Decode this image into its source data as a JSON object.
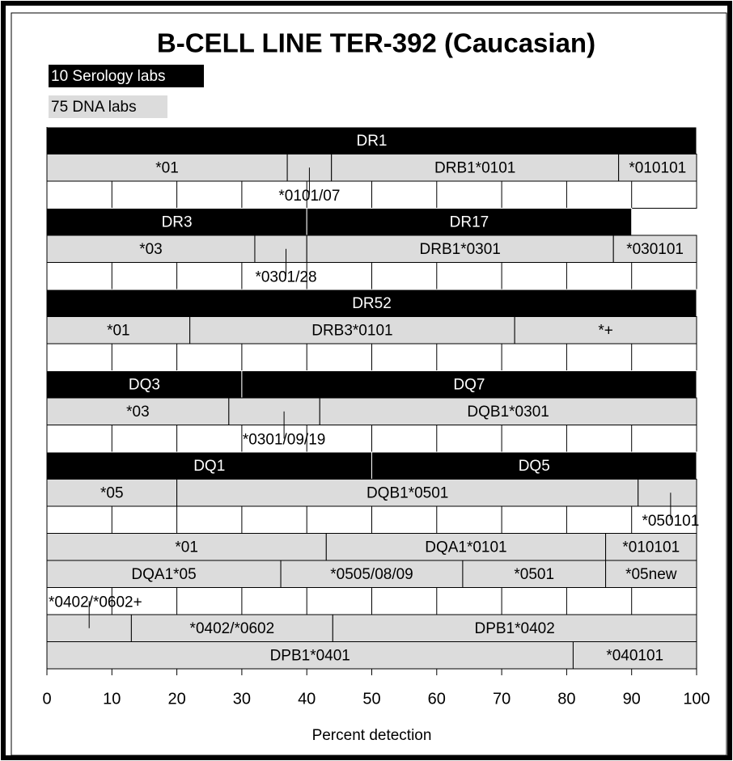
{
  "chart_data": {
    "type": "segmented",
    "title": "B-CELL LINE TER-392 (Caucasian)",
    "legend": [
      {
        "label": "10 Serology labs",
        "color": "#000000"
      },
      {
        "label": "75 DNA labs",
        "color": "#dcdcdc"
      }
    ],
    "xlabel": "Percent detection",
    "xlim": [
      0,
      100
    ],
    "xticks": [
      0,
      10,
      20,
      30,
      40,
      50,
      60,
      70,
      80,
      90,
      100
    ],
    "rows": [
      {
        "kind": "serology",
        "segments": [
          {
            "label": "DR1",
            "value": 100
          }
        ]
      },
      {
        "kind": "dna",
        "segments": [
          {
            "label": "*01",
            "value": 37
          },
          {
            "label": null,
            "value": 6.8
          },
          {
            "label": "DRB1*0101",
            "value": 44.2
          },
          {
            "label": "*010101",
            "value": 12
          }
        ]
      },
      {
        "kind": "grid",
        "markers": [
          {
            "label": "*0101/07",
            "value": 40.4,
            "link": "above"
          }
        ]
      },
      {
        "kind": "serology",
        "segments": [
          {
            "label": "DR3",
            "value": 40
          },
          {
            "label": "DR17",
            "value": 50
          }
        ]
      },
      {
        "kind": "dna",
        "segments": [
          {
            "label": "*03",
            "value": 32
          },
          {
            "label": null,
            "value": 8
          },
          {
            "label": "DRB1*0301",
            "value": 47.2
          },
          {
            "label": "*030101",
            "value": 12.8
          }
        ]
      },
      {
        "kind": "grid",
        "markers": [
          {
            "label": "*0301/28",
            "value": 36.8,
            "link": "above"
          }
        ]
      },
      {
        "kind": "serology",
        "segments": [
          {
            "label": "DR52",
            "value": 100
          }
        ]
      },
      {
        "kind": "dna",
        "segments": [
          {
            "label": "*01",
            "value": 22
          },
          {
            "label": "DRB3*0101",
            "value": 50
          },
          {
            "label": "*+",
            "value": 28
          }
        ]
      },
      {
        "kind": "grid",
        "markers": []
      },
      {
        "kind": "serology",
        "segments": [
          {
            "label": "DQ3",
            "value": 30
          },
          {
            "label": "DQ7",
            "value": 70
          }
        ]
      },
      {
        "kind": "dna",
        "segments": [
          {
            "label": "*03",
            "value": 28
          },
          {
            "label": null,
            "value": 14
          },
          {
            "label": "DQB1*0301",
            "value": 58
          }
        ]
      },
      {
        "kind": "grid",
        "markers": [
          {
            "label": "*0301/09/19",
            "value": 36.5,
            "link": "above"
          }
        ]
      },
      {
        "kind": "serology",
        "segments": [
          {
            "label": "DQ1",
            "value": 50
          },
          {
            "label": "DQ5",
            "value": 50
          }
        ]
      },
      {
        "kind": "dna",
        "segments": [
          {
            "label": "*05",
            "value": 20
          },
          {
            "label": "DQB1*0501",
            "value": 71
          },
          {
            "label": null,
            "value": 9
          }
        ]
      },
      {
        "kind": "grid",
        "markers": [
          {
            "label": "*050101",
            "value": 96,
            "link": "above"
          }
        ]
      },
      {
        "kind": "dna",
        "segments": [
          {
            "label": "*01",
            "value": 43
          },
          {
            "label": "DQA1*0101",
            "value": 43
          },
          {
            "label": "*010101",
            "value": 14
          }
        ]
      },
      {
        "kind": "dna",
        "segments": [
          {
            "label": "DQA1*05",
            "value": 36
          },
          {
            "label": "*0505/08/09",
            "value": 28
          },
          {
            "label": "*0501",
            "value": 22
          },
          {
            "label": "*05new",
            "value": 14
          }
        ]
      },
      {
        "kind": "grid",
        "markers": [
          {
            "label": "*0402/*0602+",
            "value": 6.5,
            "link": "below"
          }
        ]
      },
      {
        "kind": "dna",
        "segments": [
          {
            "label": null,
            "value": 13
          },
          {
            "label": "*0402/*0602",
            "value": 31
          },
          {
            "label": "DPB1*0402",
            "value": 56
          }
        ]
      },
      {
        "kind": "dna",
        "segments": [
          {
            "label": "DPB1*0401",
            "value": 81
          },
          {
            "label": "*040101",
            "value": 19
          }
        ]
      }
    ]
  }
}
